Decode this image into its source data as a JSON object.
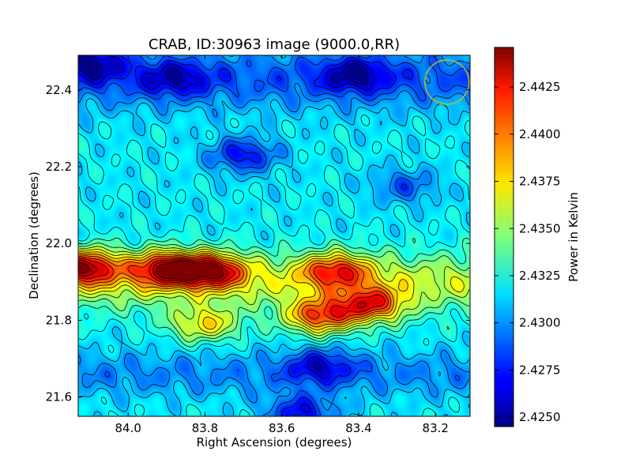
{
  "chart_data": {
    "type": "heatmap",
    "title": "CRAB, ID:30963 image (9000.0,RR)",
    "xlabel": "Right Ascension (degrees)",
    "ylabel": "Declination (degrees)",
    "xlim": [
      84.13,
      83.11
    ],
    "ylim": [
      21.55,
      22.49
    ],
    "x_ticks": [
      84.0,
      83.8,
      83.6,
      83.4,
      83.2
    ],
    "x_tick_labels": [
      "84.0",
      "83.8",
      "83.6",
      "83.4",
      "83.2"
    ],
    "y_ticks": [
      21.6,
      21.8,
      22.0,
      22.2,
      22.4
    ],
    "y_tick_labels": [
      "21.6",
      "21.8",
      "22.0",
      "22.2",
      "22.4"
    ],
    "colorbar": {
      "label": "Power in Kelvin",
      "colormap": "jet",
      "range": [
        2.4245,
        2.4446
      ],
      "ticks": [
        2.425,
        2.4275,
        2.43,
        2.4325,
        2.435,
        2.4375,
        2.44,
        2.4425
      ],
      "tick_labels": [
        "2.4250",
        "2.4275",
        "2.4300",
        "2.4325",
        "2.4350",
        "2.4375",
        "2.4400",
        "2.4425"
      ]
    },
    "contours": true,
    "beam_marker": {
      "ra": 83.17,
      "dec": 22.42,
      "color": "#c8b432"
    },
    "features": [
      {
        "ra": 84.11,
        "dec": 21.94,
        "peak": 2.4445
      },
      {
        "ra": 83.9,
        "dec": 21.935,
        "peak": 2.4443
      },
      {
        "ra": 83.78,
        "dec": 21.93,
        "peak": 2.4435
      },
      {
        "ra": 83.5,
        "dec": 21.81,
        "peak": 2.4432
      },
      {
        "ra": 83.37,
        "dec": 21.84,
        "peak": 2.4428
      },
      {
        "ra": 83.46,
        "dec": 21.93,
        "peak": 2.4415
      },
      {
        "ra": 83.8,
        "dec": 21.79,
        "peak": 2.439
      },
      {
        "ra": 84.1,
        "dec": 22.47,
        "peak": 2.425
      },
      {
        "ra": 83.7,
        "dec": 22.23,
        "peak": 2.4255
      },
      {
        "ra": 83.55,
        "dec": 21.56,
        "peak": 2.4255
      },
      {
        "ra": 83.41,
        "dec": 22.44,
        "peak": 2.426
      },
      {
        "ra": 83.5,
        "dec": 21.68,
        "peak": 2.4265
      },
      {
        "ra": 83.88,
        "dec": 22.43,
        "peak": 2.427
      },
      {
        "ra": 83.28,
        "dec": 22.15,
        "peak": 2.4278
      }
    ]
  }
}
